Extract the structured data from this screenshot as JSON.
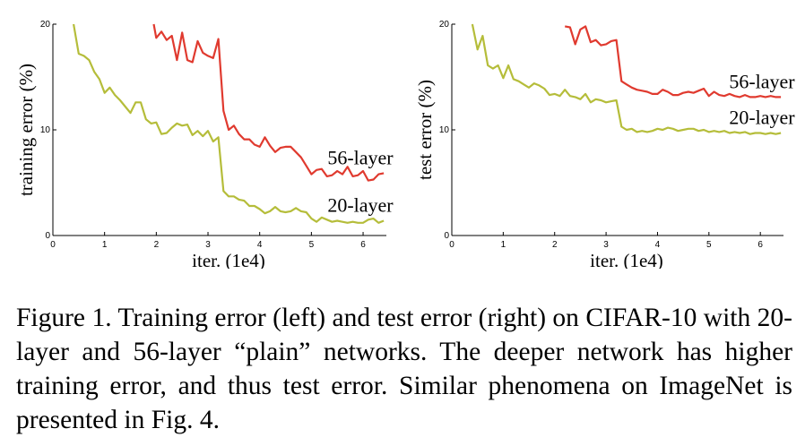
{
  "chart_data": [
    {
      "type": "line",
      "title": "",
      "xlabel": "iter. (1e4)",
      "ylabel": "training error (%)",
      "xlim": [
        0,
        6.45
      ],
      "ylim": [
        0,
        20
      ],
      "xticks": [
        "0",
        "1",
        "2",
        "3",
        "4",
        "5",
        "6"
      ],
      "yticks": [
        "0",
        "10",
        "20"
      ],
      "grid": false,
      "series": [
        {
          "name": "56-layer",
          "color": "#e03a2f",
          "x": [
            1.95,
            2.0,
            2.1,
            2.2,
            2.3,
            2.4,
            2.5,
            2.6,
            2.7,
            2.8,
            2.9,
            3.0,
            3.1,
            3.2,
            3.3,
            3.4,
            3.5,
            3.6,
            3.7,
            3.8,
            3.9,
            4.0,
            4.1,
            4.2,
            4.3,
            4.4,
            4.5,
            4.6,
            4.7,
            4.8,
            4.9,
            5.0,
            5.1,
            5.2,
            5.3,
            5.4,
            5.5,
            5.6,
            5.7,
            5.8,
            5.9,
            6.0,
            6.1,
            6.2,
            6.3,
            6.4
          ],
          "values": [
            20.0,
            18.7,
            19.3,
            18.5,
            18.9,
            16.6,
            19.2,
            16.6,
            16.4,
            18.4,
            17.3,
            17.0,
            16.8,
            18.6,
            11.8,
            10.0,
            10.4,
            9.6,
            9.1,
            9.1,
            8.6,
            8.4,
            9.3,
            8.5,
            7.9,
            8.3,
            8.4,
            8.4,
            7.9,
            7.4,
            6.6,
            5.8,
            6.2,
            6.3,
            5.6,
            5.7,
            6.1,
            5.8,
            6.5,
            5.6,
            5.7,
            6.1,
            5.2,
            5.3,
            5.8,
            5.9
          ]
        },
        {
          "name": "20-layer",
          "color": "#b5bd3a",
          "x": [
            0.4,
            0.5,
            0.6,
            0.7,
            0.8,
            0.9,
            1.0,
            1.1,
            1.2,
            1.3,
            1.4,
            1.5,
            1.6,
            1.7,
            1.8,
            1.9,
            2.0,
            2.1,
            2.2,
            2.3,
            2.4,
            2.5,
            2.6,
            2.7,
            2.8,
            2.9,
            3.0,
            3.1,
            3.2,
            3.3,
            3.4,
            3.5,
            3.6,
            3.7,
            3.8,
            3.9,
            4.0,
            4.1,
            4.2,
            4.3,
            4.4,
            4.5,
            4.6,
            4.7,
            4.8,
            4.9,
            5.0,
            5.1,
            5.2,
            5.3,
            5.4,
            5.5,
            5.6,
            5.7,
            5.8,
            5.9,
            6.0,
            6.1,
            6.2,
            6.3,
            6.4
          ],
          "values": [
            20.0,
            17.2,
            17.0,
            16.6,
            15.5,
            14.8,
            13.5,
            14.0,
            13.3,
            12.8,
            12.2,
            11.6,
            12.6,
            12.6,
            11.0,
            10.6,
            10.7,
            9.6,
            9.7,
            10.2,
            10.6,
            10.4,
            10.5,
            9.5,
            9.9,
            9.4,
            9.9,
            8.9,
            9.3,
            4.2,
            3.7,
            3.7,
            3.4,
            3.3,
            2.8,
            2.8,
            2.5,
            2.1,
            2.3,
            2.7,
            2.3,
            2.2,
            2.3,
            2.6,
            2.3,
            2.2,
            1.6,
            1.3,
            1.7,
            1.5,
            1.3,
            1.4,
            1.3,
            1.2,
            1.3,
            1.2,
            1.2,
            1.5,
            1.6,
            1.2,
            1.4
          ]
        }
      ]
    },
    {
      "type": "line",
      "title": "",
      "xlabel": "iter. (1e4)",
      "ylabel": "test error (%)",
      "xlim": [
        0,
        6.45
      ],
      "ylim": [
        0,
        20
      ],
      "xticks": [
        "0",
        "1",
        "2",
        "3",
        "4",
        "5",
        "6"
      ],
      "yticks": [
        "0",
        "10",
        "20"
      ],
      "grid": false,
      "series": [
        {
          "name": "56-layer",
          "color": "#e03a2f",
          "x": [
            2.2,
            2.3,
            2.4,
            2.5,
            2.6,
            2.7,
            2.8,
            2.9,
            3.0,
            3.1,
            3.2,
            3.3,
            3.4,
            3.5,
            3.6,
            3.7,
            3.8,
            3.9,
            4.0,
            4.1,
            4.2,
            4.3,
            4.4,
            4.5,
            4.6,
            4.7,
            4.8,
            4.9,
            5.0,
            5.1,
            5.2,
            5.3,
            5.4,
            5.5,
            5.6,
            5.7,
            5.8,
            5.9,
            6.0,
            6.1,
            6.2,
            6.3,
            6.4
          ],
          "values": [
            19.8,
            19.7,
            18.1,
            19.5,
            19.8,
            18.3,
            18.5,
            18.0,
            18.1,
            18.4,
            18.5,
            14.6,
            14.3,
            14.0,
            13.8,
            13.7,
            13.6,
            13.4,
            13.4,
            13.8,
            13.6,
            13.3,
            13.3,
            13.5,
            13.6,
            13.5,
            13.7,
            13.9,
            13.2,
            13.6,
            13.3,
            13.2,
            13.4,
            13.2,
            13.1,
            13.3,
            13.1,
            13.1,
            13.2,
            13.1,
            13.2,
            13.1,
            13.1
          ]
        },
        {
          "name": "20-layer",
          "color": "#b5bd3a",
          "x": [
            0.4,
            0.5,
            0.6,
            0.7,
            0.8,
            0.9,
            1.0,
            1.1,
            1.2,
            1.3,
            1.4,
            1.5,
            1.6,
            1.7,
            1.8,
            1.9,
            2.0,
            2.1,
            2.2,
            2.3,
            2.4,
            2.5,
            2.6,
            2.7,
            2.8,
            2.9,
            3.0,
            3.1,
            3.2,
            3.3,
            3.4,
            3.5,
            3.6,
            3.7,
            3.8,
            3.9,
            4.0,
            4.1,
            4.2,
            4.3,
            4.4,
            4.5,
            4.6,
            4.7,
            4.8,
            4.9,
            5.0,
            5.1,
            5.2,
            5.3,
            5.4,
            5.5,
            5.6,
            5.7,
            5.8,
            5.9,
            6.0,
            6.1,
            6.2,
            6.3,
            6.4
          ],
          "values": [
            20.0,
            17.6,
            18.9,
            16.1,
            15.8,
            16.1,
            14.9,
            16.1,
            14.8,
            14.6,
            14.3,
            14.0,
            14.4,
            14.2,
            13.9,
            13.3,
            13.4,
            13.2,
            13.8,
            13.2,
            13.1,
            12.9,
            13.4,
            12.6,
            12.9,
            12.8,
            12.6,
            12.7,
            12.8,
            10.3,
            10.0,
            10.1,
            9.8,
            9.9,
            9.8,
            9.9,
            10.1,
            10.0,
            10.2,
            10.1,
            9.9,
            10.0,
            10.1,
            10.1,
            9.9,
            10.0,
            9.8,
            9.9,
            9.8,
            9.9,
            9.7,
            9.8,
            9.7,
            9.8,
            9.6,
            9.7,
            9.7,
            9.6,
            9.7,
            9.6,
            9.7
          ]
        }
      ]
    }
  ],
  "caption": "Figure 1. Training error (left) and test error (right) on CIFAR-10 with 20-layer and 56-layer “plain” networks. The deeper network has higher training error, and thus test error. Similar phenomena on ImageNet is presented in Fig. 4."
}
